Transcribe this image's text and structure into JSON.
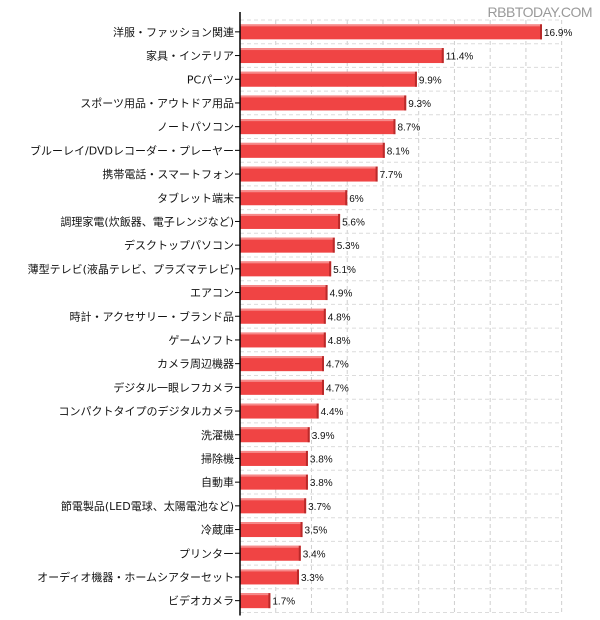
{
  "watermark": "RBBTODAY.COM",
  "chart_data": {
    "type": "bar",
    "orientation": "horizontal",
    "categories": [
      "洋服・ファッション関連",
      "家具・インテリア",
      "PCパーツ",
      "スポーツ用品・アウトドア用品",
      "ノートパソコン",
      "ブルーレイ/DVDレコーダー・プレーヤー",
      "携帯電話・スマートフォン",
      "タブレット端末",
      "調理家電(炊飯器、電子レンジなど)",
      "デスクトップパソコン",
      "薄型テレビ(液晶テレビ、プラズマテレビ)",
      "エアコン",
      "時計・アクセサリー・ブランド品",
      "ゲームソフト",
      "カメラ周辺機器",
      "デジタル一眼レフカメラ",
      "コンパクトタイプのデジタルカメラ",
      "洗濯機",
      "掃除機",
      "自動車",
      "節電製品(LED電球、太陽電池など)",
      "冷蔵庫",
      "プリンター",
      "オーディオ機器・ホームシアターセット",
      "ビデオカメラ"
    ],
    "values": [
      16.9,
      11.4,
      9.9,
      9.3,
      8.7,
      8.1,
      7.7,
      6,
      5.6,
      5.3,
      5.1,
      4.9,
      4.8,
      4.8,
      4.7,
      4.7,
      4.4,
      3.9,
      3.8,
      3.8,
      3.7,
      3.5,
      3.4,
      3.3,
      1.7
    ],
    "data_labels": [
      "16.9%",
      "11.4%",
      "9.9%",
      "9.3%",
      "8.7%",
      "8.1%",
      "7.7%",
      "6%",
      "5.6%",
      "5.3%",
      "5.1%",
      "4.9%",
      "4.8%",
      "4.8%",
      "4.7%",
      "4.7%",
      "4.4%",
      "3.9%",
      "3.8%",
      "3.8%",
      "3.7%",
      "3.5%",
      "3.4%",
      "3.3%",
      "1.7%"
    ],
    "xlim": [
      0,
      18
    ],
    "grid": true,
    "bar_color": "#f04444",
    "title": "",
    "xlabel": "",
    "ylabel": ""
  }
}
